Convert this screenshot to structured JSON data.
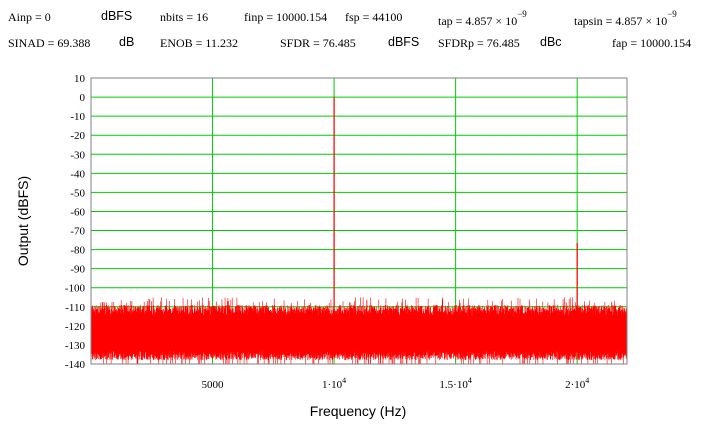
{
  "header": {
    "row1": [
      {
        "id": "ainp",
        "text": "Ainp = 0"
      },
      {
        "id": "ainp-unit",
        "text": "dBFS"
      },
      {
        "id": "nbits",
        "text": "nbits = 16"
      },
      {
        "id": "finp",
        "text": "finp = 10000.154"
      },
      {
        "id": "fsp",
        "text": "fsp = 44100"
      },
      {
        "id": "tap",
        "text": "tap = 4.857 × 10",
        "exp": "−9"
      },
      {
        "id": "tapsin",
        "text": "tapsin = 4.857 × 10",
        "exp": "−9"
      }
    ],
    "row2": [
      {
        "id": "sinad",
        "text": "SINAD = 69.388"
      },
      {
        "id": "sinad-unit",
        "text": "dB"
      },
      {
        "id": "enob",
        "text": "ENOB = 11.232"
      },
      {
        "id": "sfdr",
        "text": "SFDR = 76.485"
      },
      {
        "id": "sfdr-unit",
        "text": "dBFS"
      },
      {
        "id": "sfdrp",
        "text": "SFDRp = 76.485"
      },
      {
        "id": "sfdrp-unit",
        "text": "dBc"
      },
      {
        "id": "fap",
        "text": "fap = 10000.154"
      }
    ]
  },
  "colors": {
    "grid": "#00cc00",
    "spectrum": "#ff0000",
    "frame": "#808080"
  },
  "chart_data": {
    "type": "line",
    "title": "",
    "xlabel": "Frequency (Hz)",
    "ylabel": "Output (dBFS)",
    "xlim": [
      0,
      22050
    ],
    "ylim": [
      -140,
      10
    ],
    "grid": true,
    "x_ticks": [
      {
        "value": 5000,
        "label": "5000"
      },
      {
        "value": 10000,
        "label": "1·10",
        "exp": "4"
      },
      {
        "value": 15000,
        "label": "1.5·10",
        "exp": "4"
      },
      {
        "value": 20000,
        "label": "2·10",
        "exp": "4"
      }
    ],
    "y_ticks": [
      10,
      0,
      -10,
      -20,
      -30,
      -40,
      -50,
      -60,
      -70,
      -80,
      -90,
      -100,
      -110,
      -120,
      -130,
      -140
    ],
    "noise_floor": {
      "top_db": -108,
      "bottom_db": -140,
      "typical_upper_db": -113,
      "typical_lower_db": -133
    },
    "peaks": [
      {
        "x": 10000.154,
        "y": 0
      },
      {
        "x": 20000,
        "y": -76.5
      }
    ]
  }
}
